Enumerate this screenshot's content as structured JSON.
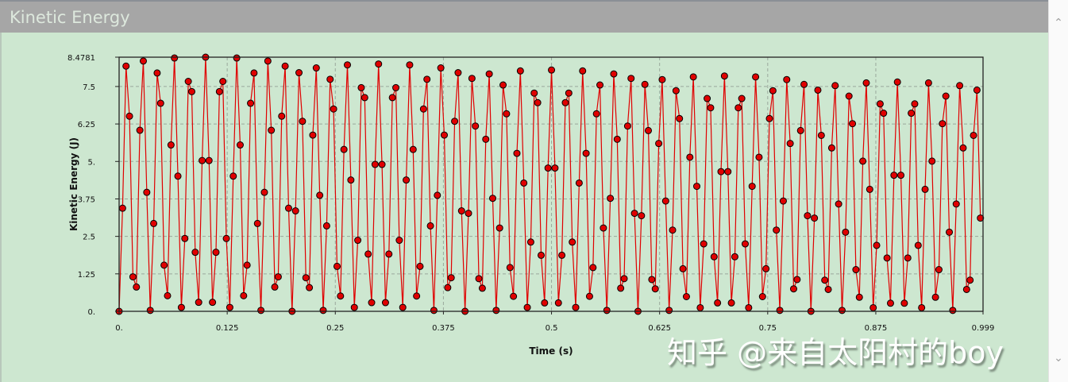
{
  "window": {
    "title": "Kinetic Energy"
  },
  "scrollbar": {
    "up_icon": "chevron-up-icon",
    "down_icon": "chevron-down-icon"
  },
  "watermark": "知乎 @来自太阳村的boy",
  "chart_data": {
    "type": "line",
    "title": "",
    "xlabel": "Time (s)",
    "ylabel": "Kinetic Energy (J)",
    "xlim": [
      0,
      0.999
    ],
    "ylim": [
      0,
      8.4781
    ],
    "x_ticks": [
      0,
      0.125,
      0.25,
      0.375,
      0.5,
      0.625,
      0.75,
      0.875,
      0.999
    ],
    "x_tick_labels": [
      "0.",
      "0.125",
      "0.25",
      "0.375",
      "0.5",
      "0.625",
      "0.75",
      "0.875",
      "0.999"
    ],
    "y_ticks": [
      0,
      1.25,
      2.5,
      3.75,
      5,
      6.25,
      7.5,
      8.4781
    ],
    "y_tick_labels": [
      "0.",
      "1.25",
      "2.5",
      "3.75",
      "5.",
      "6.25",
      "7.5",
      "8.4781"
    ],
    "grid": true,
    "markers": true,
    "colors": {
      "line": "#e00000",
      "marker_fill": "#e00000",
      "marker_edge": "#000000",
      "grid": "#9aa89c"
    },
    "series": [
      {
        "x_start": 0,
        "x_step": 0.004,
        "y": [
          0,
          3.44,
          8.18,
          6.51,
          1.15,
          0.81,
          6.04,
          8.35,
          3.97,
          0.03,
          2.93,
          7.95,
          6.94,
          1.54,
          0.52,
          5.55,
          8.45,
          4.51,
          0.13,
          2.43,
          7.67,
          7.33,
          1.97,
          0.3,
          5.03,
          8.4781,
          5.03,
          0.3,
          1.97,
          7.33,
          7.67,
          2.43,
          0.13,
          4.51,
          8.45,
          5.55,
          0.52,
          1.54,
          6.94,
          7.95,
          2.93,
          0.03,
          3.97,
          8.35,
          6.04,
          0.81,
          1.15,
          6.51,
          8.18,
          3.44,
          0,
          3.35,
          7.96,
          6.34,
          1.12,
          0.79,
          5.88,
          8.12,
          3.87,
          0.03,
          2.85,
          7.74,
          6.75,
          1.5,
          0.51,
          5.4,
          8.22,
          4.38,
          0.13,
          2.37,
          7.46,
          7.13,
          1.91,
          0.29,
          4.9,
          8.25,
          4.9,
          0.29,
          1.91,
          7.13,
          7.46,
          2.37,
          0.13,
          4.38,
          8.22,
          5.4,
          0.51,
          1.5,
          6.75,
          7.74,
          2.85,
          0.03,
          3.87,
          8.12,
          5.88,
          0.79,
          1.12,
          6.34,
          7.96,
          3.35,
          0,
          3.27,
          7.77,
          6.18,
          1.09,
          0.77,
          5.74,
          7.92,
          3.77,
          0.03,
          2.78,
          7.55,
          6.59,
          1.46,
          0.5,
          5.27,
          8.02,
          4.28,
          0.13,
          2.31,
          7.28,
          6.96,
          1.87,
          0.28,
          4.78,
          8.05,
          4.78,
          0.28,
          1.87,
          6.96,
          7.28,
          2.31,
          0.13,
          4.28,
          8.02,
          5.27,
          0.5,
          1.46,
          6.59,
          7.55,
          2.78,
          0.03,
          3.77,
          7.92,
          5.74,
          0.77,
          1.09,
          6.18,
          7.77,
          3.27,
          0,
          3.19,
          7.57,
          6.03,
          1.06,
          0.75,
          5.6,
          7.73,
          3.68,
          0.03,
          2.71,
          7.36,
          6.43,
          1.42,
          0.49,
          5.14,
          7.82,
          4.17,
          0.12,
          2.25,
          7.1,
          6.79,
          1.82,
          0.28,
          4.66,
          7.85,
          4.66,
          0.28,
          1.82,
          6.79,
          7.1,
          2.25,
          0.12,
          4.17,
          7.82,
          5.14,
          0.49,
          1.42,
          6.43,
          7.36,
          2.71,
          0.03,
          3.68,
          7.73,
          5.6,
          0.75,
          1.06,
          6.03,
          7.57,
          3.19,
          0,
          3.11,
          7.38,
          5.87,
          1.04,
          0.73,
          5.45,
          7.53,
          3.58,
          0.03,
          2.64,
          7.18,
          6.26,
          1.39,
          0.47,
          5.01,
          7.62,
          4.07,
          0.12,
          2.2,
          6.92,
          6.61,
          1.78,
          0.27,
          4.54,
          7.65,
          4.54,
          0.27,
          1.78,
          6.61,
          6.92,
          2.2,
          0.12,
          4.07,
          7.62,
          5.01,
          0.47,
          1.39,
          6.26,
          7.18,
          2.64,
          0.03,
          3.58,
          7.53,
          5.45,
          0.73,
          1.04,
          5.87,
          7.38,
          3.11
        ]
      }
    ]
  }
}
